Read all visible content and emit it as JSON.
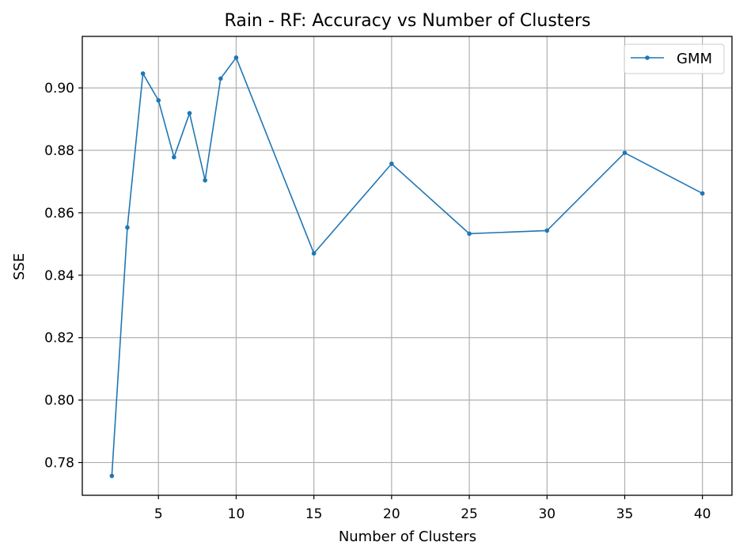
{
  "chart_data": {
    "type": "line",
    "title": "Rain - RF: Accuracy vs Number of Clusters",
    "xlabel": "Number of Clusters",
    "ylabel": "SSE",
    "xlim": [
      0.1,
      41.9
    ],
    "ylim": [
      0.7695,
      0.9165
    ],
    "xticks": [
      5,
      10,
      15,
      20,
      25,
      30,
      35,
      40
    ],
    "xtick_labels": [
      "5",
      "10",
      "15",
      "20",
      "25",
      "30",
      "35",
      "40"
    ],
    "yticks": [
      0.78,
      0.8,
      0.82,
      0.84,
      0.86,
      0.88,
      0.9
    ],
    "ytick_labels": [
      "0.78",
      "0.80",
      "0.82",
      "0.84",
      "0.86",
      "0.88",
      "0.90"
    ],
    "grid": true,
    "legend_position": "top-right",
    "series": [
      {
        "name": "GMM",
        "color": "#1f77b4",
        "marker": "dot",
        "x": [
          2,
          3,
          4,
          5,
          6,
          7,
          8,
          9,
          10,
          15,
          20,
          25,
          30,
          35,
          40
        ],
        "y": [
          0.7757,
          0.8553,
          0.9046,
          0.896,
          0.8778,
          0.8919,
          0.8704,
          0.903,
          0.9097,
          0.847,
          0.8757,
          0.8533,
          0.8543,
          0.8792,
          0.8662
        ]
      }
    ]
  }
}
